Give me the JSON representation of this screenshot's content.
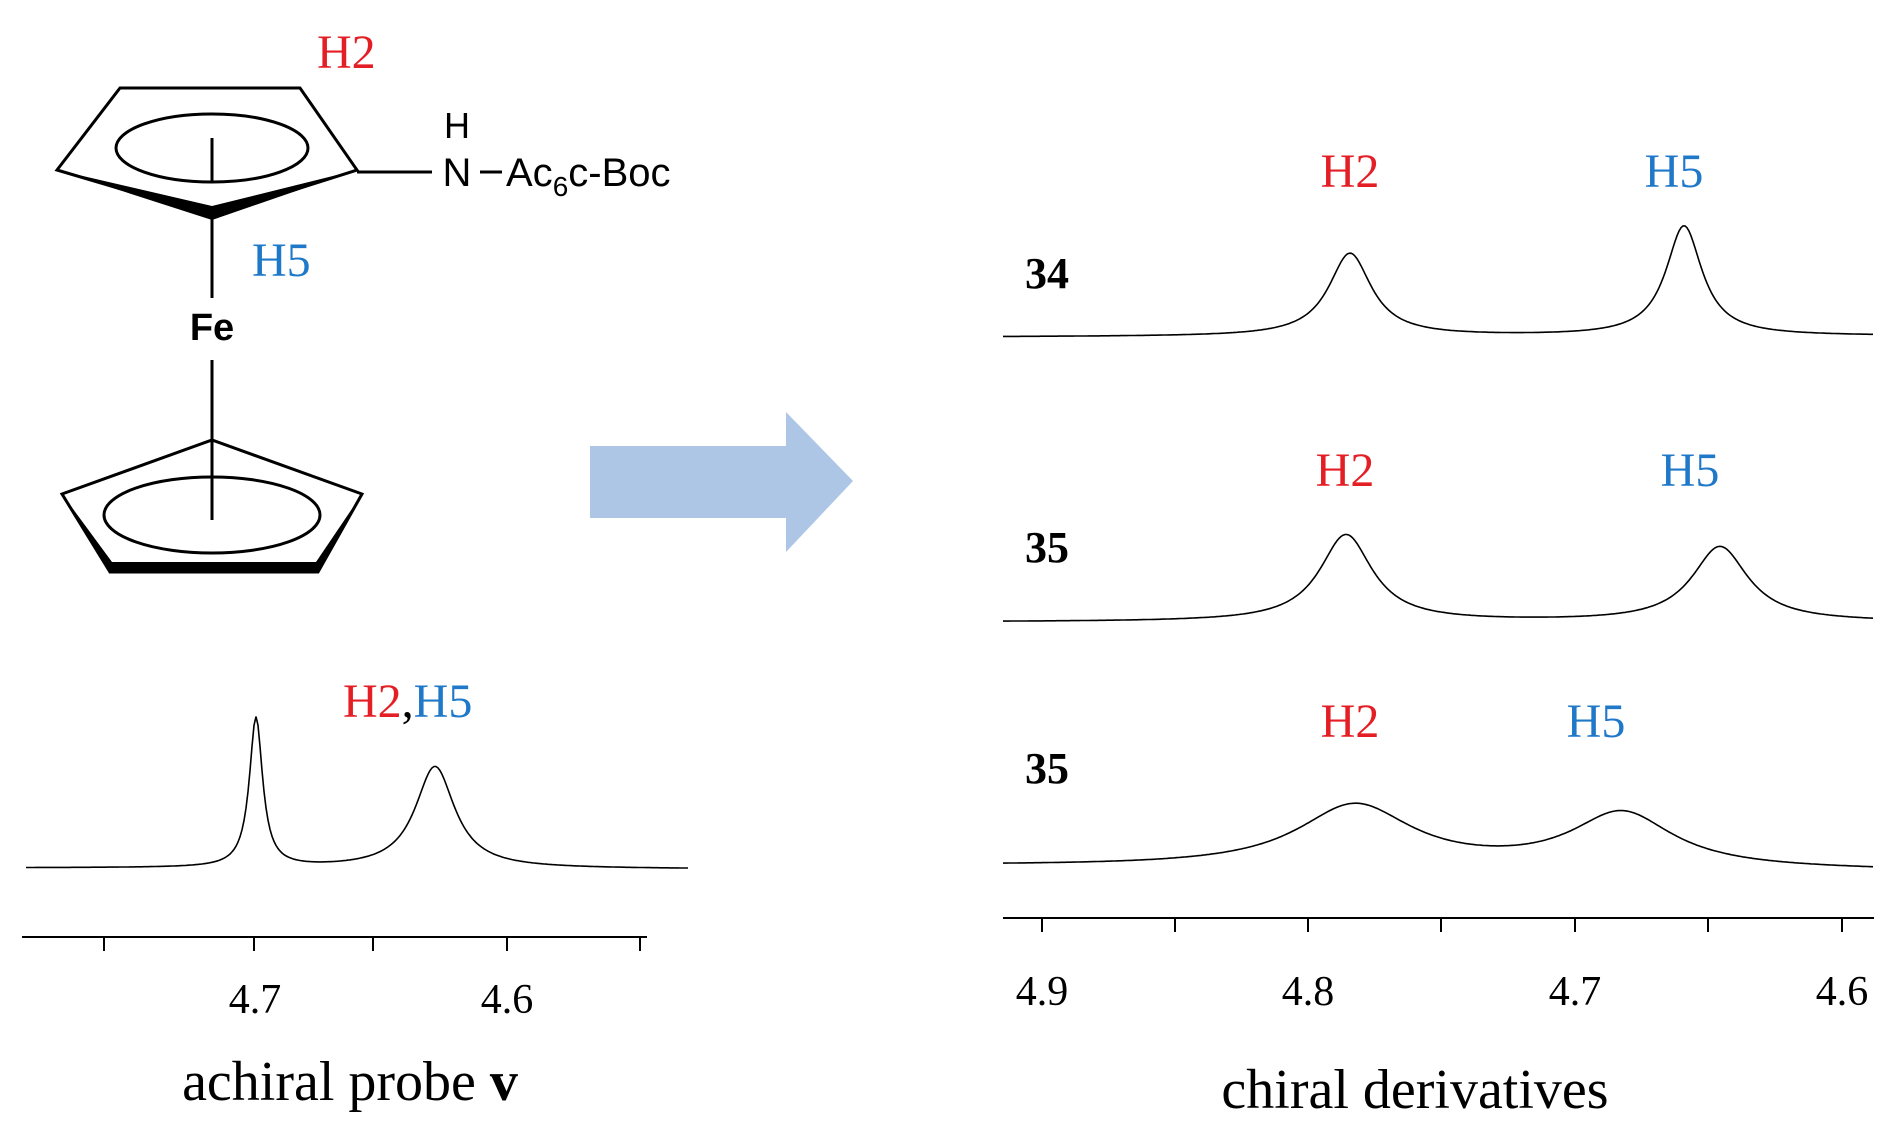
{
  "structure": {
    "label_h2": "H2",
    "label_h5": "H5",
    "metal": "Fe",
    "nh_h": "H",
    "substituent_n": "N",
    "substituent_main": "Ac",
    "substituent_sub": "6",
    "substituent_tail": "c-Boc"
  },
  "achiral": {
    "label_h2": "H2",
    "label_comma": ",",
    "label_h5": "H5",
    "ticks": [
      "4.7",
      "4.6"
    ],
    "caption_text": "achiral probe ",
    "caption_bold": "v"
  },
  "chiral": {
    "rows": [
      {
        "compound": "34",
        "h2": "H2",
        "h5": "H5"
      },
      {
        "compound": "35",
        "h2": "H2",
        "h5": "H5"
      },
      {
        "compound": "35",
        "h2": "H2",
        "h5": "H5"
      }
    ],
    "ticks": [
      "4.9",
      "4.8",
      "4.7",
      "4.6"
    ],
    "caption": "chiral derivatives"
  },
  "colors": {
    "h2": "#e31e24",
    "h5": "#1f78c8",
    "arrow": "#adc6e6"
  }
}
